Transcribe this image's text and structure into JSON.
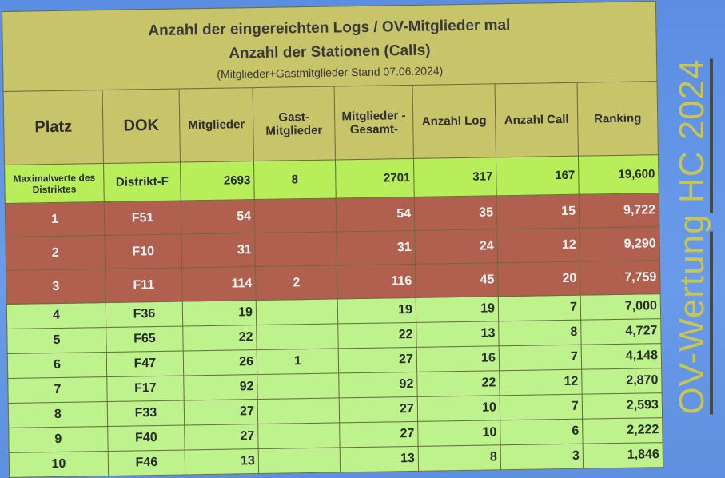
{
  "title": {
    "line1": "Anzahl der eingereichten Logs / OV-Mitglieder mal",
    "line2": "Anzahl der Stationen (Calls)",
    "line3": "(Mitglieder+Gastmitglieder Stand 07.06.2024)"
  },
  "headers": {
    "platz": "Platz",
    "dok": "DOK",
    "mitglieder": "Mitglieder",
    "gast": "Gast-Mitglieder",
    "gesamt": "Mitglieder -Gesamt-",
    "log": "Anzahl Log",
    "call": "Anzahl Call",
    "ranking": "Ranking"
  },
  "max": {
    "label": "Maximalwerte des Distriktes",
    "dok": "Distrikt-F",
    "mitglieder": "2693",
    "gast": "8",
    "gesamt": "2701",
    "log": "317",
    "call": "167",
    "ranking": "19,600"
  },
  "rows": [
    {
      "platz": "1",
      "dok": "F51",
      "mitglieder": "54",
      "gast": "",
      "gesamt": "54",
      "log": "35",
      "call": "15",
      "ranking": "9,722"
    },
    {
      "platz": "2",
      "dok": "F10",
      "mitglieder": "31",
      "gast": "",
      "gesamt": "31",
      "log": "24",
      "call": "12",
      "ranking": "9,290"
    },
    {
      "platz": "3",
      "dok": "F11",
      "mitglieder": "114",
      "gast": "2",
      "gesamt": "116",
      "log": "45",
      "call": "20",
      "ranking": "7,759"
    },
    {
      "platz": "4",
      "dok": "F36",
      "mitglieder": "19",
      "gast": "",
      "gesamt": "19",
      "log": "19",
      "call": "7",
      "ranking": "7,000"
    },
    {
      "platz": "5",
      "dok": "F65",
      "mitglieder": "22",
      "gast": "",
      "gesamt": "22",
      "log": "13",
      "call": "8",
      "ranking": "4,727"
    },
    {
      "platz": "6",
      "dok": "F47",
      "mitglieder": "26",
      "gast": "1",
      "gesamt": "27",
      "log": "16",
      "call": "7",
      "ranking": "4,148"
    },
    {
      "platz": "7",
      "dok": "F17",
      "mitglieder": "92",
      "gast": "",
      "gesamt": "92",
      "log": "22",
      "call": "12",
      "ranking": "2,870"
    },
    {
      "platz": "8",
      "dok": "F33",
      "mitglieder": "27",
      "gast": "",
      "gesamt": "27",
      "log": "10",
      "call": "7",
      "ranking": "2,593"
    },
    {
      "platz": "9",
      "dok": "F40",
      "mitglieder": "27",
      "gast": "",
      "gesamt": "27",
      "log": "10",
      "call": "6",
      "ranking": "2,222"
    },
    {
      "platz": "10",
      "dok": "F46",
      "mitglieder": "13",
      "gast": "",
      "gesamt": "13",
      "log": "8",
      "call": "3",
      "ranking": "1,846"
    }
  ],
  "side_title": "OV-Wertung HC 2024",
  "colors": {
    "background": "#5d8fe0",
    "header": "#c8c46a",
    "max_row": "#b8ee5a",
    "top3": "#b15f4e",
    "rows": "#bdf28d",
    "side_text": "#c9c552"
  }
}
